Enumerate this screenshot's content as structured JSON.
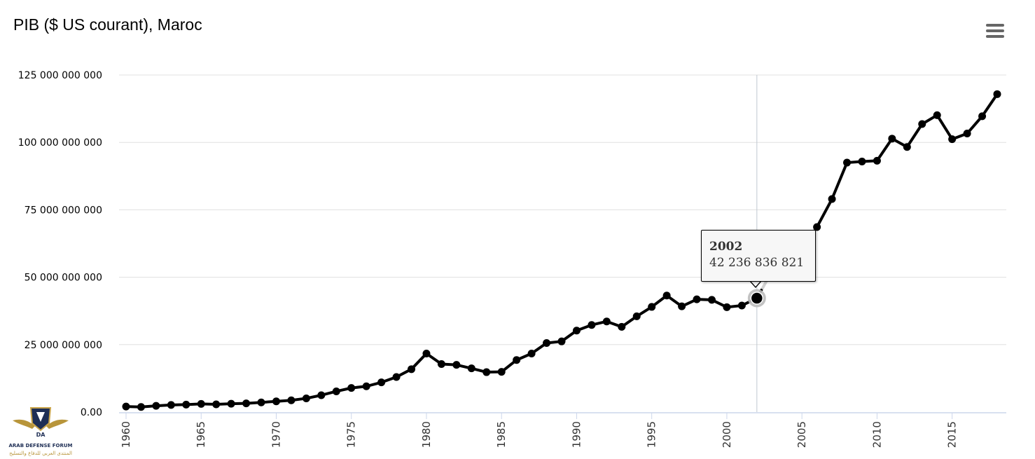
{
  "chart_data": {
    "type": "line",
    "title": "PIB ($ US courant), Maroc",
    "xlabel": "",
    "ylabel": "",
    "x": [
      1960,
      1961,
      1962,
      1963,
      1964,
      1965,
      1966,
      1967,
      1968,
      1969,
      1970,
      1971,
      1972,
      1973,
      1974,
      1975,
      1976,
      1977,
      1978,
      1979,
      1980,
      1981,
      1982,
      1983,
      1984,
      1985,
      1986,
      1987,
      1988,
      1989,
      1990,
      1991,
      1992,
      1993,
      1994,
      1995,
      1996,
      1997,
      1998,
      1999,
      2000,
      2001,
      2002,
      2003,
      2004,
      2005,
      2006,
      2007,
      2008,
      2009,
      2010,
      2011,
      2012,
      2013,
      2014,
      2015,
      2016,
      2017,
      2018
    ],
    "series": [
      {
        "values": [
          2040000000,
          1890000000,
          2300000000,
          2630000000,
          2750000000,
          3010000000,
          2860000000,
          3090000000,
          3220000000,
          3580000000,
          3960000000,
          4360000000,
          5080000000,
          6240000000,
          7670000000,
          8930000000,
          9550000000,
          11000000000,
          13000000000,
          15900000000,
          21700000000,
          17800000000,
          17500000000,
          16200000000,
          14800000000,
          14900000000,
          19300000000,
          21700000000,
          25600000000,
          26200000000,
          30200000000,
          32300000000,
          33600000000,
          31600000000,
          35500000000,
          39000000000,
          43200000000,
          39200000000,
          41800000000,
          41600000000,
          38900000000,
          39500000000,
          42236836821,
          52100000000,
          59600000000,
          62300000000,
          68600000000,
          79000000000,
          92500000000,
          92900000000,
          93200000000,
          101400000000,
          98300000000,
          106800000000,
          110100000000,
          101200000000,
          103300000000,
          109700000000,
          117900000000
        ]
      }
    ],
    "ylim": [
      0,
      125000000000
    ],
    "xlim": [
      1960,
      2018
    ],
    "yticks": [
      0,
      25000000000,
      50000000000,
      75000000000,
      100000000000,
      125000000000
    ],
    "ytick_labels": [
      "0.00",
      "25 000 000 000",
      "50 000 000 000",
      "75 000 000 000",
      "100 000 000 000",
      "125 000 000 000"
    ],
    "xticks": [
      1960,
      1965,
      1970,
      1975,
      1980,
      1985,
      1990,
      1995,
      2000,
      2005,
      2010,
      2015
    ],
    "xtick_labels": [
      "1960",
      "1965",
      "1970",
      "1975",
      "1980",
      "1985",
      "1990",
      "1995",
      "2000",
      "2005",
      "2010",
      "2015"
    ],
    "grid": "horizontal",
    "legend": "none",
    "highlight_x": 2002,
    "faded_range": [
      2002,
      2006
    ]
  },
  "tooltip": {
    "year": "2002",
    "value": "42 236 836 821"
  },
  "colors": {
    "line": "#000000",
    "faded": "#d0d0d0",
    "grid": "#e0e0e0",
    "crosshair": "#c0c8d0",
    "menu": "#666666"
  },
  "icons": {
    "menu": "hamburger-menu-icon",
    "watermark": "arab-defense-forum-logo"
  },
  "watermark": {
    "badge": "DA",
    "text_en": "ARAB DEFENSE FORUM",
    "text_ar": "المنتدى العربي للدفاع والتسليح"
  }
}
